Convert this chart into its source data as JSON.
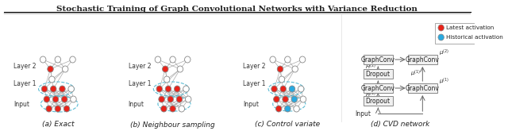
{
  "title": "Stochastic Training of Graph Convolutional Networks with Variance Reduction",
  "title_fontsize": 7.5,
  "background_color": "#ffffff",
  "border_color": "#000000",
  "node_edge_color": "#888888",
  "node_fill_white": "#ffffff",
  "node_fill_red": "#e8231a",
  "node_fill_blue": "#29a9e0",
  "dashed_color": "#5bbcd4",
  "line_color": "#aaaaaa",
  "box_color": "#cccccc",
  "arrow_color": "#666666",
  "legend_red": "#e8231a",
  "legend_blue": "#29a9e0",
  "subfig_labels": [
    "(a) Exact",
    "(b) Neighbour sampling",
    "(c) Control variate",
    "(d) CVD network"
  ],
  "subfig_label_fontsize": 6.5,
  "layer_labels": [
    "Layer 2",
    "Layer 1",
    "Input"
  ],
  "layer_label_fontsize": 5.5
}
